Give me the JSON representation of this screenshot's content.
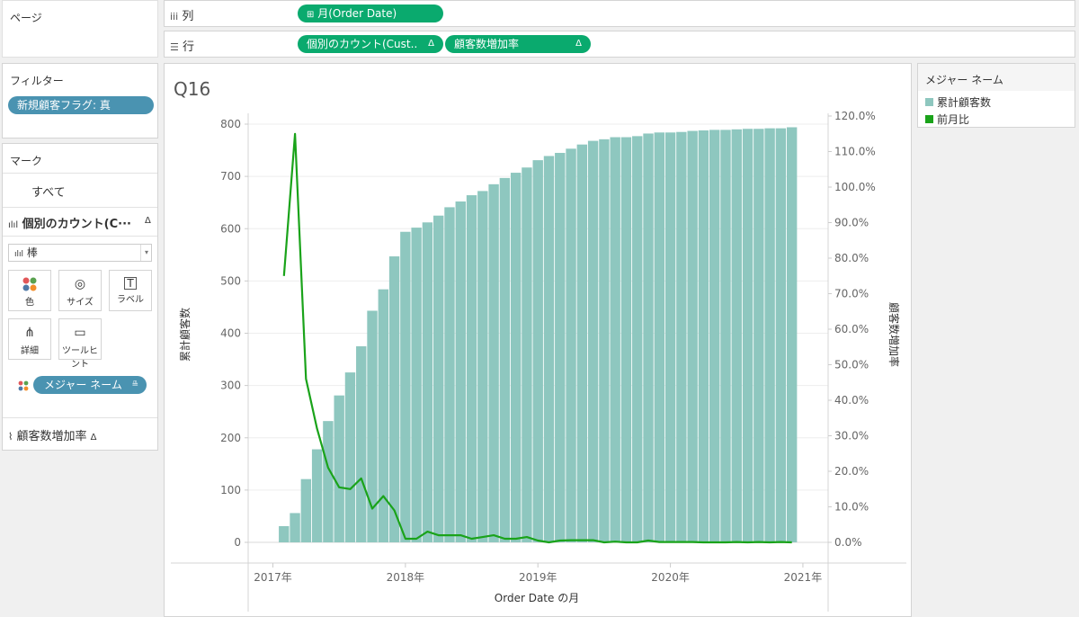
{
  "pages_panel": {
    "title": "ページ"
  },
  "columns_shelf": {
    "label": "列",
    "pill": "月(Order Date)"
  },
  "rows_shelf": {
    "label": "行",
    "pills": [
      "個別のカウント(Cust..",
      "顧客数増加率"
    ]
  },
  "filters_panel": {
    "title": "フィルター",
    "pill": "新規顧客フラグ: 真"
  },
  "marks_panel": {
    "title": "マーク",
    "all": "すべて",
    "measure1": "個別のカウント(C···",
    "mark_type": "棒",
    "buttons": [
      "色",
      "サイズ",
      "ラベル",
      "詳細",
      "ツールヒント"
    ],
    "color_pill": "メジャー ネーム",
    "measure2": "顧客数増加率"
  },
  "legend": {
    "title": "メジャー ネーム",
    "items": [
      {
        "label": "累計顧客数",
        "color": "#8ec7bf"
      },
      {
        "label": "前月比",
        "color": "#1aa31a"
      }
    ]
  },
  "chart_title": "Q16",
  "chart_data": {
    "type": "bar",
    "title": "Q16",
    "xlabel": "Order Date の月",
    "ylabel_left": "累計顧客数",
    "ylabel_right": "顧客数増加率",
    "x_ticks": [
      "2017年",
      "2018年",
      "2019年",
      "2020年",
      "2021年"
    ],
    "y_ticks_left": [
      "0",
      "100",
      "200",
      "300",
      "400",
      "500",
      "600",
      "700",
      "800"
    ],
    "y_ticks_right": [
      "0.0%",
      "10.0%",
      "20.0%",
      "30.0%",
      "40.0%",
      "50.0%",
      "60.0%",
      "70.0%",
      "80.0%",
      "90.0%",
      "100.0%",
      "110.0%",
      "120.0%"
    ],
    "ylim_left": [
      0,
      800
    ],
    "ylim_right": [
      0,
      1.2
    ],
    "categories": [
      "2017-02",
      "2017-03",
      "2017-04",
      "2017-05",
      "2017-06",
      "2017-07",
      "2017-08",
      "2017-09",
      "2017-10",
      "2017-11",
      "2017-12",
      "2018-01",
      "2018-02",
      "2018-03",
      "2018-04",
      "2018-05",
      "2018-06",
      "2018-07",
      "2018-08",
      "2018-09",
      "2018-10",
      "2018-11",
      "2018-12",
      "2019-01",
      "2019-02",
      "2019-03",
      "2019-04",
      "2019-05",
      "2019-06",
      "2019-07",
      "2019-08",
      "2019-09",
      "2019-10",
      "2019-11",
      "2019-12",
      "2020-01",
      "2020-02",
      "2020-03",
      "2020-04",
      "2020-05",
      "2020-06",
      "2020-07",
      "2020-08",
      "2020-09",
      "2020-10",
      "2020-11",
      "2020-12"
    ],
    "series": [
      {
        "name": "累計顧客数",
        "type": "bar",
        "axis": "left",
        "color": "#8ec7bf",
        "values": [
          31,
          56,
          121,
          178,
          232,
          281,
          325,
          375,
          443,
          484,
          547,
          594,
          602,
          612,
          625,
          641,
          652,
          664,
          672,
          685,
          697,
          707,
          717,
          731,
          739,
          745,
          753,
          761,
          768,
          771,
          775,
          775,
          777,
          782,
          784,
          784,
          785,
          787,
          788,
          789,
          789,
          790,
          791,
          791,
          792,
          792,
          794
        ]
      },
      {
        "name": "前月比",
        "type": "line",
        "axis": "right",
        "color": "#1aa31a",
        "values": [
          0.75,
          1.15,
          0.46,
          0.32,
          0.21,
          0.155,
          0.15,
          0.18,
          0.095,
          0.13,
          0.09,
          0.01,
          0.01,
          0.03,
          0.02,
          0.02,
          0.02,
          0.01,
          0.015,
          0.02,
          0.01,
          0.01,
          0.015,
          0.005,
          0.0,
          0.005,
          0.006,
          0.006,
          0.006,
          0.0,
          0.002,
          0.0,
          0.0,
          0.005,
          0.001,
          0.001,
          0.001,
          0.001,
          0.0,
          0.0,
          0.0,
          0.001,
          0.0,
          0.001,
          0.0,
          0.001,
          0.0
        ]
      }
    ]
  }
}
